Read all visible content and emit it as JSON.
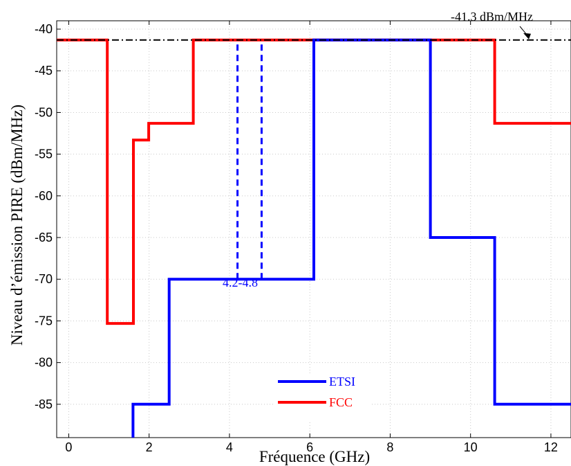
{
  "chart_data": {
    "type": "line",
    "title": "",
    "xlabel": "Fréquence (GHz)",
    "ylabel": "Niveau d’émission PIRE (dBm/MHz)",
    "xlim": [
      -0.3,
      12.5
    ],
    "ylim": [
      -89,
      -39
    ],
    "xticks": [
      0,
      2,
      4,
      6,
      8,
      10,
      12
    ],
    "yticks": [
      -40,
      -45,
      -50,
      -55,
      -60,
      -65,
      -70,
      -75,
      -80,
      -85
    ],
    "grid": true,
    "legend_position": "bottom-center",
    "series": [
      {
        "name": "ETSI",
        "color": "#0000ff",
        "step_points": [
          [
            1.6,
            -89
          ],
          [
            1.6,
            -85
          ],
          [
            2.5,
            -85
          ],
          [
            2.5,
            -70
          ],
          [
            6.1,
            -70
          ],
          [
            6.1,
            -41.3
          ],
          [
            9.0,
            -41.3
          ],
          [
            9.0,
            -65
          ],
          [
            10.6,
            -65
          ],
          [
            10.6,
            -85
          ],
          [
            12.5,
            -85
          ]
        ]
      },
      {
        "name": "FCC",
        "color": "#ff0000",
        "step_points": [
          [
            -0.3,
            -41.3
          ],
          [
            0.96,
            -41.3
          ],
          [
            0.96,
            -75.3
          ],
          [
            1.61,
            -75.3
          ],
          [
            1.61,
            -53.3
          ],
          [
            1.99,
            -53.3
          ],
          [
            1.99,
            -51.3
          ],
          [
            3.1,
            -51.3
          ],
          [
            3.1,
            -41.3
          ],
          [
            10.6,
            -41.3
          ],
          [
            10.6,
            -51.3
          ],
          [
            12.5,
            -51.3
          ]
        ]
      }
    ],
    "reference_line": {
      "y": -41.3,
      "label": "-41.3 dBm/MHz",
      "color": "#000000"
    },
    "band_markers": {
      "x": [
        4.2,
        4.8
      ],
      "y_from": -70,
      "y_to": -41.3,
      "label": "4.2-4.8",
      "color": "#0000ff"
    }
  }
}
